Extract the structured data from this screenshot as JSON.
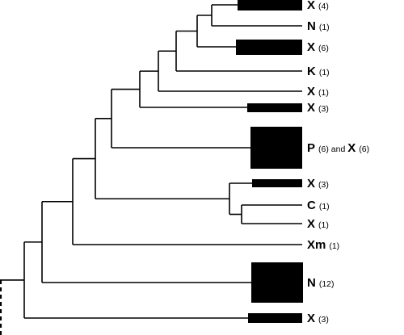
{
  "colors": {
    "line": "#000000",
    "block": "#000000",
    "background": "#ffffff"
  },
  "leaves": [
    {
      "parts": [
        {
          "code": "X",
          "count": "(4)"
        }
      ]
    },
    {
      "parts": [
        {
          "code": "N",
          "count": "(1)"
        }
      ]
    },
    {
      "parts": [
        {
          "code": "X",
          "count": "(6)"
        }
      ]
    },
    {
      "parts": [
        {
          "code": "K",
          "count": "(1)"
        }
      ]
    },
    {
      "parts": [
        {
          "code": "X",
          "count": "(1)"
        }
      ]
    },
    {
      "parts": [
        {
          "code": "X",
          "count": "(3)"
        }
      ]
    },
    {
      "parts": [
        {
          "code": "P",
          "count": "(6)"
        },
        {
          "code": "X",
          "count": "(6)"
        }
      ],
      "joiner": "and"
    },
    {
      "parts": [
        {
          "code": "X",
          "count": "(3)"
        }
      ]
    },
    {
      "parts": [
        {
          "code": "C",
          "count": "(1)"
        }
      ]
    },
    {
      "parts": [
        {
          "code": "X",
          "count": "(1)"
        }
      ]
    },
    {
      "parts": [
        {
          "code": "Xm",
          "count": "(1)"
        }
      ]
    },
    {
      "parts": [
        {
          "code": "N",
          "count": "(12)"
        }
      ]
    },
    {
      "parts": [
        {
          "code": "X",
          "count": "(3)"
        }
      ]
    }
  ]
}
